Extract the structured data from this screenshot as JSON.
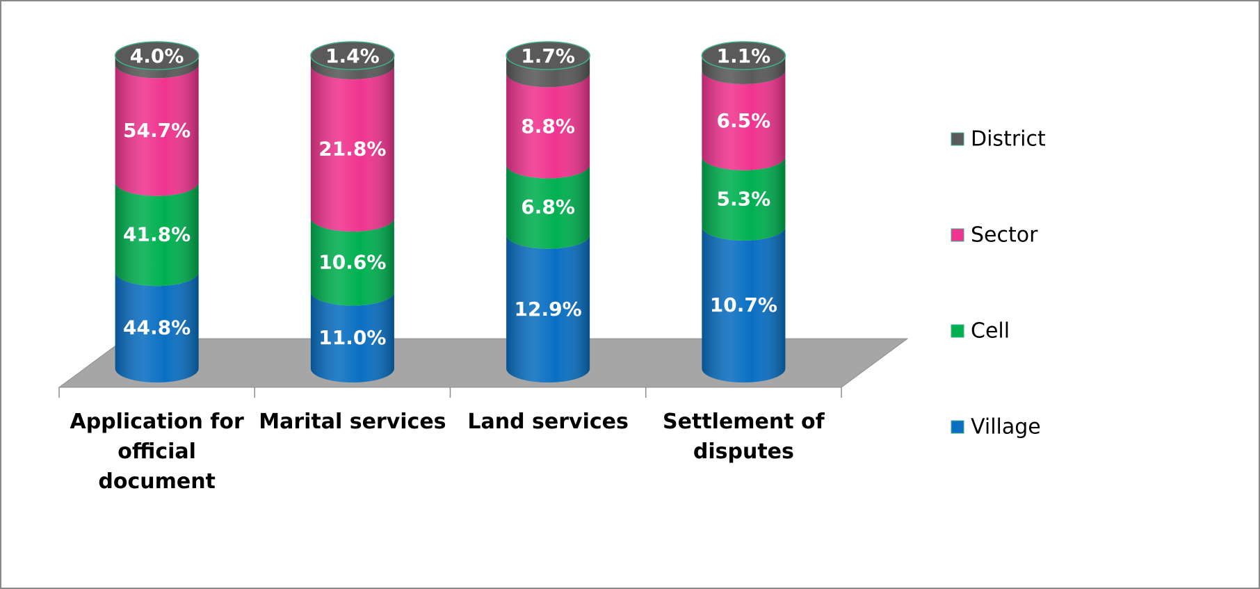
{
  "chart_data": {
    "type": "bar",
    "stacked": "percent",
    "categories": [
      "Application for official document",
      "Marital services",
      "Land services",
      "Settlement of disputes"
    ],
    "series": [
      {
        "name": "Village",
        "color": "#0a6fc2",
        "values": [
          44.8,
          11.0,
          12.9,
          10.7
        ],
        "value_labels": [
          "44.8%",
          "11.0%",
          "12.9%",
          "10.7%"
        ]
      },
      {
        "name": "Cell",
        "color": "#00b050",
        "values": [
          41.8,
          10.6,
          6.8,
          5.3
        ],
        "value_labels": [
          "41.8%",
          "10.6%",
          "6.8%",
          "5.3%"
        ]
      },
      {
        "name": "Sector",
        "color": "#f0348f",
        "values": [
          54.7,
          21.8,
          8.8,
          6.5
        ],
        "value_labels": [
          "54.7%",
          "21.8%",
          "8.8%",
          "6.5%"
        ]
      },
      {
        "name": "District",
        "color": "#5a5a5a",
        "values": [
          4.0,
          1.4,
          1.7,
          1.1
        ],
        "value_labels": [
          "4.0%",
          "1.4%",
          "1.7%",
          "1.1%"
        ]
      }
    ],
    "legend": "right"
  }
}
